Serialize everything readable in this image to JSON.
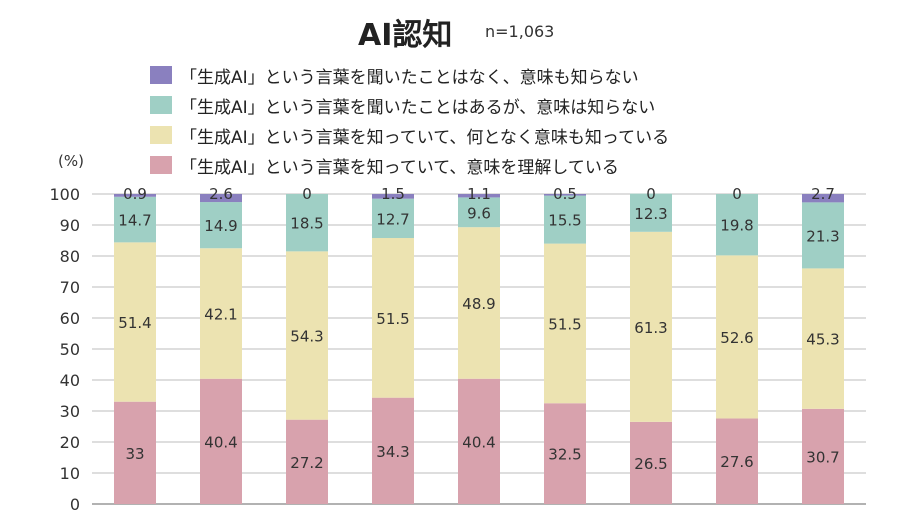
{
  "chart_data": {
    "type": "bar",
    "stacked": true,
    "title": "AI認知",
    "sample_size": "n=1,063",
    "ylabel": "(%)",
    "ylim": [
      0,
      100
    ],
    "yticks": [
      "0",
      "10",
      "20",
      "30",
      "40",
      "50",
      "60",
      "70",
      "80",
      "90",
      "100"
    ],
    "grid": true,
    "legend_position": "top",
    "categories": [
      "",
      "",
      "",
      "",
      "",
      "",
      "",
      "",
      ""
    ],
    "series": [
      {
        "name": "「生成AI」という言葉を知っていて、意味を理解している",
        "color": "#d8a2ad",
        "values": [
          33,
          40.4,
          27.2,
          34.3,
          40.4,
          32.5,
          26.5,
          27.6,
          30.7
        ],
        "labels": [
          "33",
          "40.4",
          "27.2",
          "34.3",
          "40.4",
          "32.5",
          "26.5",
          "27.6",
          "30.7"
        ]
      },
      {
        "name": "「生成AI」という言葉を知っていて、何となく意味も知っている",
        "color": "#ece3b1",
        "values": [
          51.4,
          42.1,
          54.3,
          51.5,
          48.9,
          51.5,
          61.3,
          52.6,
          45.3
        ],
        "labels": [
          "51.4",
          "42.1",
          "54.3",
          "51.5",
          "48.9",
          "51.5",
          "61.3",
          "52.6",
          "45.3"
        ]
      },
      {
        "name": "「生成AI」という言葉を聞いたことはあるが、意味は知らない",
        "color": "#9fcfc5",
        "values": [
          14.7,
          14.9,
          18.5,
          12.7,
          9.6,
          15.5,
          12.3,
          19.8,
          21.3
        ],
        "labels": [
          "14.7",
          "14.9",
          "18.5",
          "12.7",
          "9.6",
          "15.5",
          "12.3",
          "19.8",
          "21.3"
        ]
      },
      {
        "name": "「生成AI」という言葉を聞いたことはなく、意味も知らない",
        "color": "#8a80bf",
        "values": [
          0.9,
          2.6,
          0,
          1.5,
          1.1,
          0.5,
          0,
          0,
          2.7
        ],
        "labels": [
          "0.9",
          "2.6",
          "0",
          "1.5",
          "1.1",
          "0.5",
          "0",
          "0",
          "2.7"
        ]
      }
    ]
  }
}
